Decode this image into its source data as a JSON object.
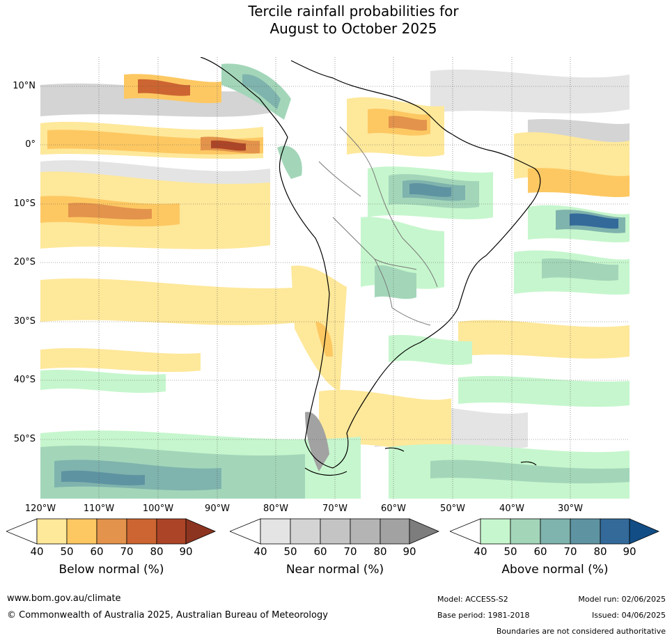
{
  "title_line1": "Tercile rainfall probabilities for",
  "title_line2": "August to October 2025",
  "lat_labels": [
    "10°N",
    "0°",
    "10°S",
    "20°S",
    "30°S",
    "40°S",
    "50°S"
  ],
  "lon_labels": [
    "120°W",
    "110°W",
    "100°W",
    "90°W",
    "80°W",
    "70°W",
    "60°W",
    "50°W",
    "40°W",
    "30°W"
  ],
  "colorbars": [
    {
      "title": "Below normal (%)",
      "ticks": [
        "40",
        "50",
        "60",
        "70",
        "80",
        "90"
      ],
      "colors": [
        "#ffffff",
        "#fee89a",
        "#fdc862",
        "#e3934b",
        "#cc6531",
        "#ac4527",
        "#8c3420"
      ]
    },
    {
      "title": "Near normal (%)",
      "ticks": [
        "40",
        "50",
        "60",
        "70",
        "80",
        "90"
      ],
      "colors": [
        "#ffffff",
        "#e4e4e4",
        "#d4d4d4",
        "#c4c4c4",
        "#b4b4b4",
        "#a2a2a2",
        "#7d7d7d"
      ]
    },
    {
      "title": "Above normal (%)",
      "ticks": [
        "40",
        "50",
        "60",
        "70",
        "80",
        "90"
      ],
      "colors": [
        "#ffffff",
        "#c6f6cd",
        "#a3d6b9",
        "#7fb3ad",
        "#5e93a2",
        "#336a9a",
        "#124d85"
      ]
    }
  ],
  "footer": {
    "url": "www.bom.gov.au/climate",
    "copyright": "© Commonwealth of Australia 2025, Australian Bureau of Meteorology",
    "model": "Model: ACCESS-S2",
    "base_period": "Base period: 1981-2018",
    "model_run": "Model run: 02/06/2025",
    "issued": "Issued: 04/06/2025",
    "disclaimer": "Boundaries are not considered authoritative"
  }
}
